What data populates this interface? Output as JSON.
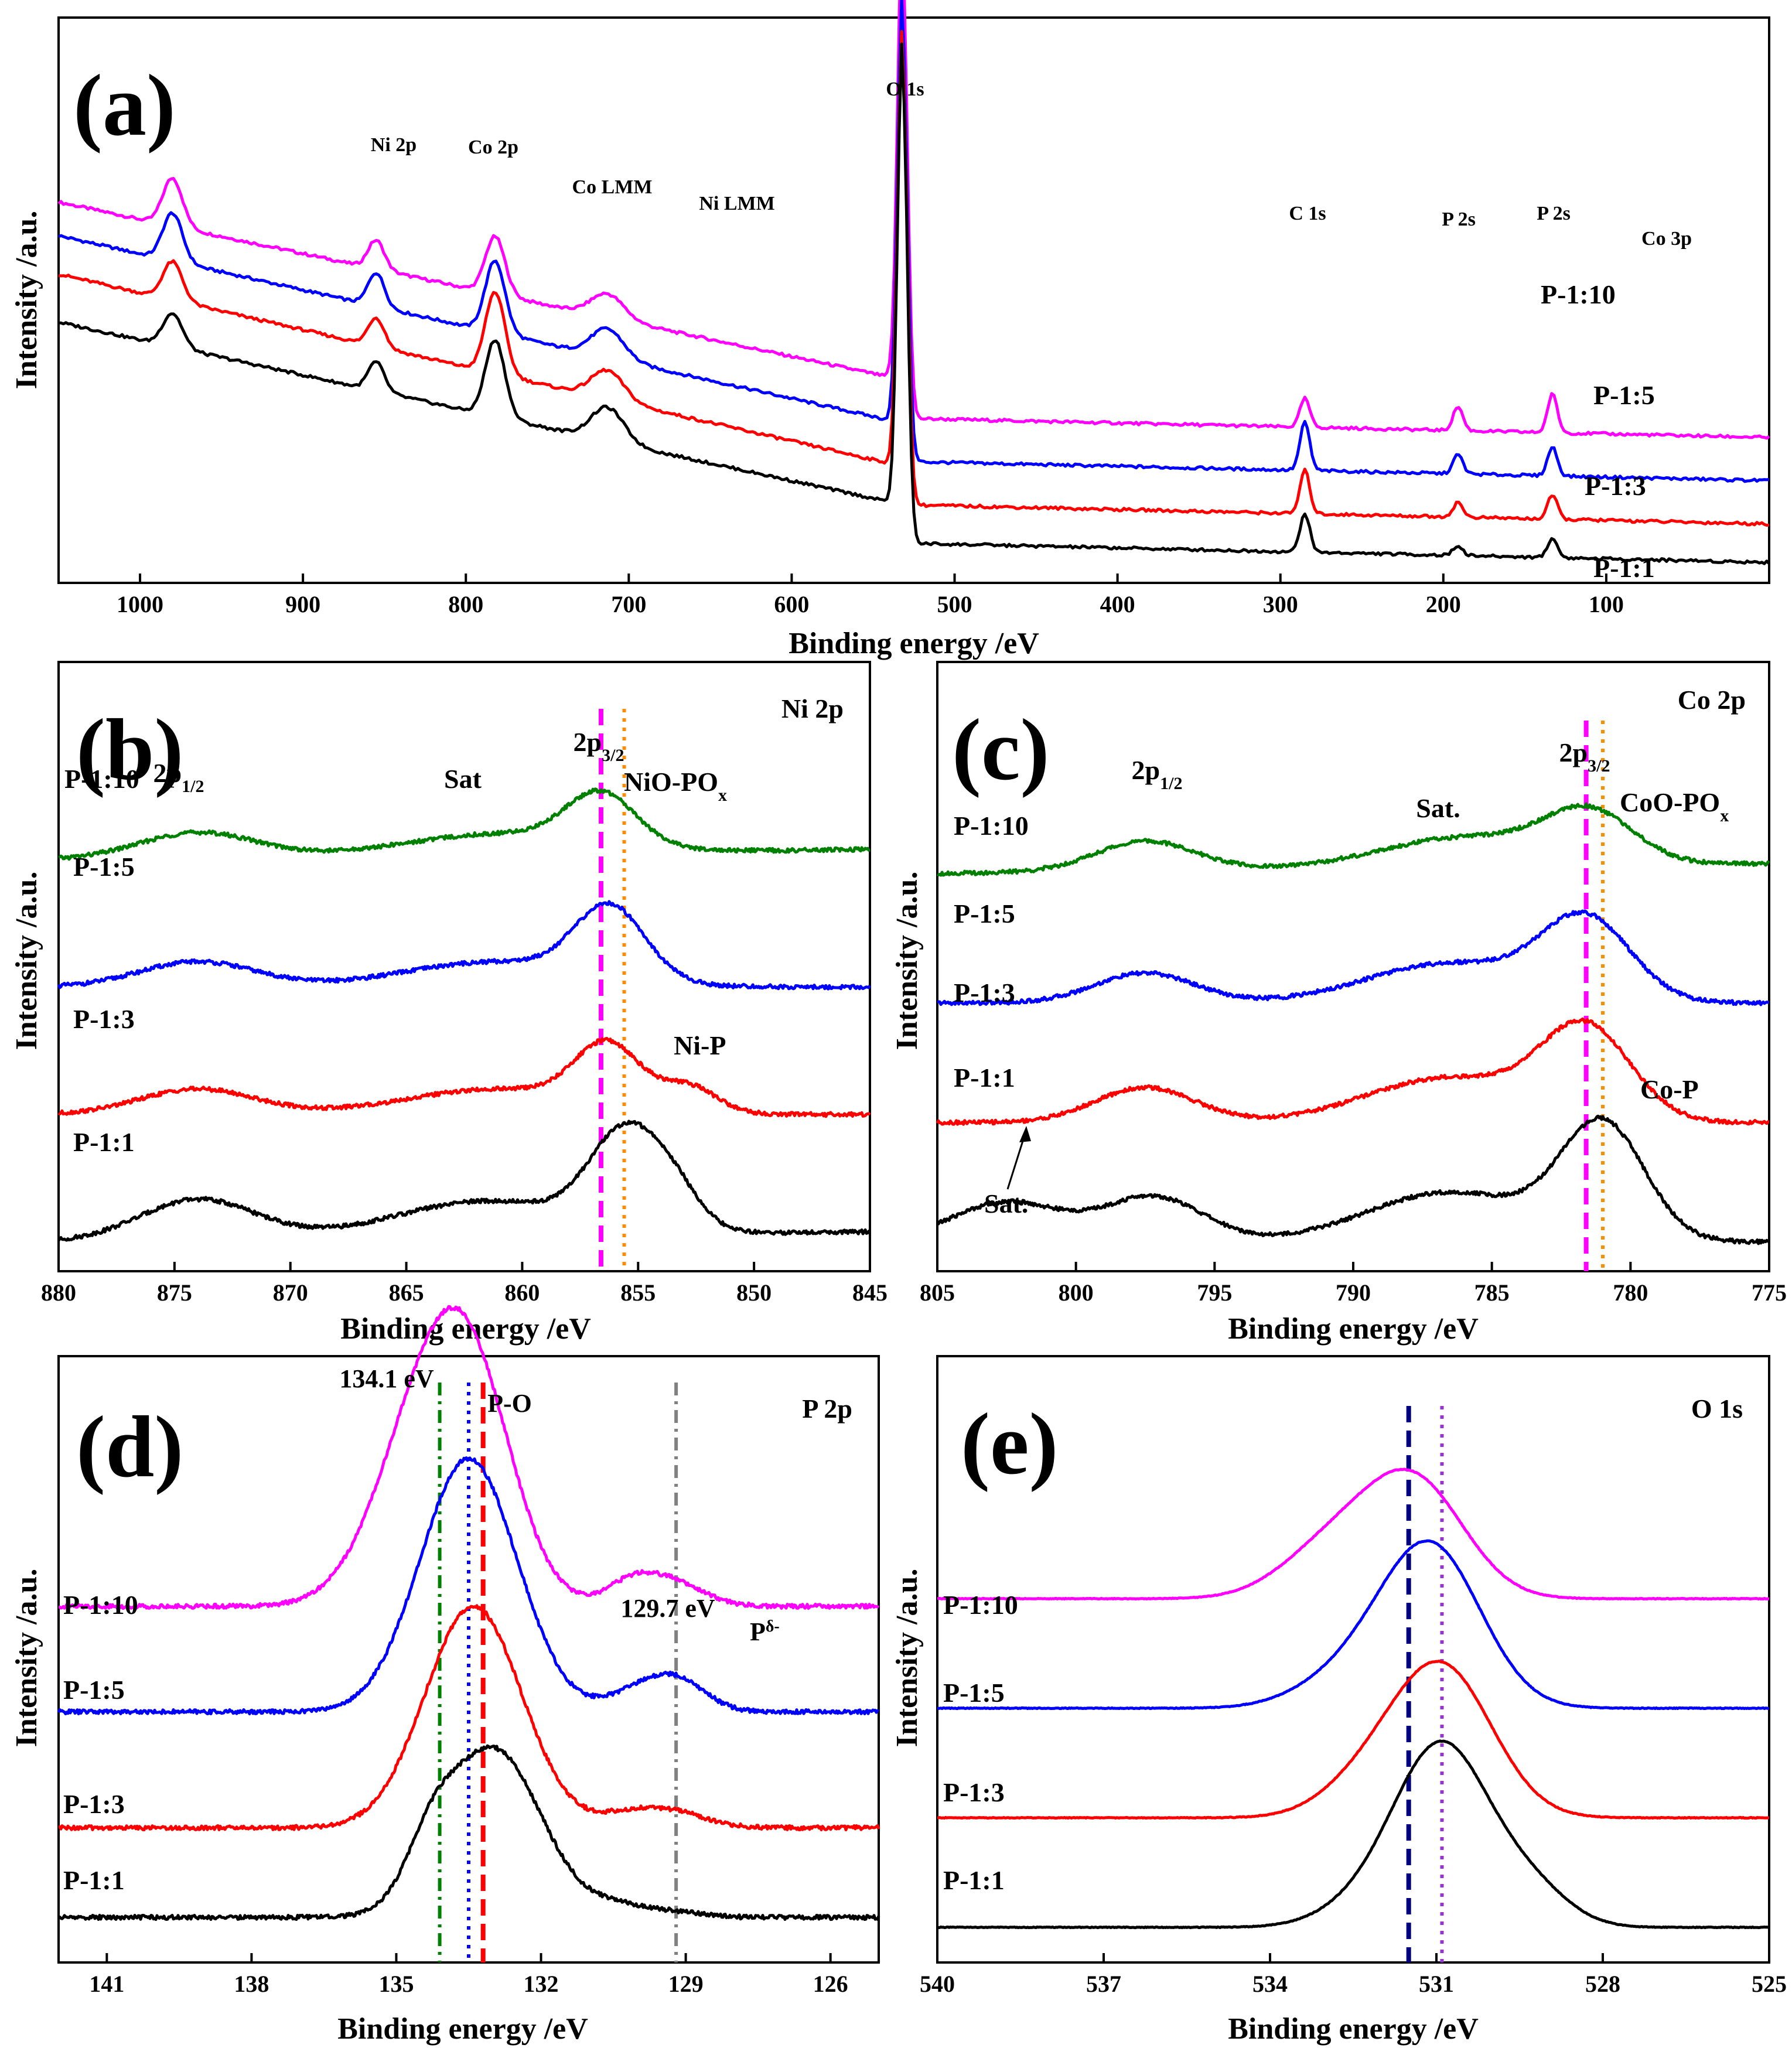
{
  "chart_data": [
    {
      "id": "a",
      "type": "line",
      "panel_label": "(a)",
      "title": "",
      "xlabel": "Binding energy /eV",
      "ylabel": "Intensity /a.u.",
      "xlim": [
        1050,
        0
      ],
      "x_reversed": true,
      "xticks": [
        1000,
        900,
        800,
        700,
        600,
        500,
        400,
        300,
        200,
        100
      ],
      "peak_labels": [
        "Ni 2p",
        "Co 2p",
        "Co LMM",
        "Ni LMM",
        "O 1s",
        "C 1s",
        "P 2s",
        "P 2s",
        "Co 3p"
      ],
      "series": [
        {
          "name": "P-1:10",
          "color": "#ff00ff",
          "baseline_left": 0.75,
          "baseline_right": 0.3,
          "peaks": [
            [
              980,
              0.1,
              6
            ],
            [
              855,
              0.06,
              5
            ],
            [
              782,
              0.12,
              6
            ],
            [
              713,
              0.05,
              10
            ],
            [
              532,
              0.95,
              3
            ],
            [
              285,
              0.06,
              3
            ],
            [
              191,
              0.05,
              3
            ],
            [
              133,
              0.08,
              3
            ]
          ]
        },
        {
          "name": "P-1:5",
          "color": "#0000ff",
          "baseline_left": 0.68,
          "baseline_right": 0.21,
          "peaks": [
            [
              980,
              0.1,
              6
            ],
            [
              855,
              0.07,
              5
            ],
            [
              782,
              0.15,
              6
            ],
            [
              713,
              0.06,
              10
            ],
            [
              532,
              0.9,
              3
            ],
            [
              285,
              0.1,
              3
            ],
            [
              191,
              0.04,
              3
            ],
            [
              133,
              0.06,
              3
            ]
          ]
        },
        {
          "name": "P-1:3",
          "color": "#ff0000",
          "baseline_left": 0.6,
          "baseline_right": 0.12,
          "peaks": [
            [
              980,
              0.08,
              6
            ],
            [
              855,
              0.06,
              5
            ],
            [
              782,
              0.17,
              6
            ],
            [
              713,
              0.06,
              10
            ],
            [
              532,
              0.92,
              3
            ],
            [
              285,
              0.09,
              3
            ],
            [
              191,
              0.03,
              3
            ],
            [
              133,
              0.05,
              3
            ]
          ]
        },
        {
          "name": "P-1:1",
          "color": "#000000",
          "baseline_left": 0.5,
          "baseline_right": 0.04,
          "peaks": [
            [
              980,
              0.07,
              6
            ],
            [
              855,
              0.06,
              5
            ],
            [
              782,
              0.16,
              6
            ],
            [
              713,
              0.07,
              10
            ],
            [
              532,
              0.97,
              3
            ],
            [
              285,
              0.08,
              3
            ],
            [
              191,
              0.02,
              3
            ],
            [
              133,
              0.04,
              3
            ]
          ]
        }
      ]
    },
    {
      "id": "b",
      "type": "line",
      "panel_label": "(b)",
      "core_level": "Ni 2p",
      "xlabel": "Binding energy /eV",
      "ylabel": "Intensity /a.u.",
      "xlim": [
        880,
        845
      ],
      "x_reversed": true,
      "xticks": [
        880,
        875,
        870,
        865,
        860,
        855,
        850,
        845
      ],
      "annotations": [
        "2p1/2",
        "Sat",
        "2p3/2",
        "NiO-POx",
        "Ni-P"
      ],
      "reference_lines": [
        {
          "x": 856.6,
          "color": "#ff00ff",
          "style": "dashed"
        },
        {
          "x": 855.6,
          "color": "#ff8c00",
          "style": "dotted"
        }
      ],
      "series": [
        {
          "name": "P-1:10",
          "color": "#008000",
          "offset": 0.75,
          "tail": 0.02,
          "peaks": [
            [
              874,
              0.05,
              2.5
            ],
            [
              861,
              0.04,
              4
            ],
            [
              856.6,
              0.1,
              1.5
            ]
          ]
        },
        {
          "name": "P-1:5",
          "color": "#0000ff",
          "offset": 0.5,
          "tail": 0.0,
          "peaks": [
            [
              874,
              0.05,
              2.5
            ],
            [
              861,
              0.05,
              4
            ],
            [
              856.2,
              0.14,
              1.5
            ]
          ]
        },
        {
          "name": "P-1:3",
          "color": "#ff0000",
          "offset": 0.25,
          "tail": 0.0,
          "peaks": [
            [
              874,
              0.05,
              2.5
            ],
            [
              861,
              0.05,
              4
            ],
            [
              856.3,
              0.12,
              1.4
            ],
            [
              852.8,
              0.05,
              1.2
            ]
          ]
        },
        {
          "name": "P-1:1",
          "color": "#000000",
          "offset": 0.0,
          "tail": 0.02,
          "peaks": [
            [
              874,
              0.08,
              2.5
            ],
            [
              861.5,
              0.07,
              4
            ],
            [
              855.6,
              0.18,
              1.5
            ],
            [
              853.5,
              0.07,
              1.2
            ]
          ]
        }
      ]
    },
    {
      "id": "c",
      "type": "line",
      "panel_label": "(c)",
      "core_level": "Co 2p",
      "xlabel": "Binding energy /eV",
      "ylabel": "Intensity /a.u.",
      "xlim": [
        805,
        775
      ],
      "x_reversed": true,
      "xticks": [
        805,
        800,
        795,
        790,
        785,
        780,
        775
      ],
      "annotations": [
        "2p1/2",
        "Sat.",
        "2p3/2",
        "CoO-POx",
        "Co-P",
        "Sat."
      ],
      "reference_lines": [
        {
          "x": 781.6,
          "color": "#ff00ff",
          "style": "dashed"
        },
        {
          "x": 781.0,
          "color": "#ff8c00",
          "style": "dotted"
        }
      ],
      "series": [
        {
          "name": "P-1:10",
          "color": "#008000",
          "offset": 0.74,
          "tail": 0.02,
          "peaks": [
            [
              797.5,
              0.06,
              1.8
            ],
            [
              786,
              0.06,
              3
            ],
            [
              781.5,
              0.1,
              1.6
            ]
          ]
        },
        {
          "name": "P-1:5",
          "color": "#0000ff",
          "offset": 0.48,
          "tail": 0.0,
          "peaks": [
            [
              797.5,
              0.06,
              1.8
            ],
            [
              786.5,
              0.08,
              3
            ],
            [
              781.6,
              0.16,
              1.6
            ]
          ]
        },
        {
          "name": "P-1:3",
          "color": "#ff0000",
          "offset": 0.24,
          "tail": 0.0,
          "peaks": [
            [
              797.5,
              0.07,
              1.8
            ],
            [
              786.5,
              0.09,
              3
            ],
            [
              781.6,
              0.18,
              1.6
            ]
          ]
        },
        {
          "name": "P-1:1",
          "color": "#000000",
          "offset": 0.0,
          "tail": 0.0,
          "peaks": [
            [
              802.5,
              0.08,
              2.0
            ],
            [
              797.2,
              0.09,
              1.8
            ],
            [
              786.5,
              0.1,
              3
            ],
            [
              781.0,
              0.23,
              1.5
            ]
          ]
        }
      ]
    },
    {
      "id": "d",
      "type": "line",
      "panel_label": "(d)",
      "core_level": "P 2p",
      "xlabel": "Binding energy /eV",
      "ylabel": "Intensity /a.u.",
      "xlim": [
        142,
        125
      ],
      "x_reversed": true,
      "xticks": [
        141,
        138,
        135,
        132,
        129,
        126
      ],
      "annotations": [
        "134.1 eV",
        "P-O",
        "129.7 eV",
        "Pδ-"
      ],
      "reference_lines": [
        {
          "x": 134.1,
          "color": "#008000",
          "style": "dashdot"
        },
        {
          "x": 133.5,
          "color": "#0000ff",
          "style": "dotted"
        },
        {
          "x": 133.2,
          "color": "#ff0000",
          "style": "dashed"
        },
        {
          "x": 129.2,
          "color": "#808080",
          "style": "dashdot"
        }
      ],
      "series": [
        {
          "name": "P-1:10",
          "color": "#ff00ff",
          "offset": 0.62,
          "tail": 0.0,
          "peaks": [
            [
              134.1,
              0.46,
              1.1
            ],
            [
              133.3,
              0.15,
              0.8
            ],
            [
              129.4,
              0.05,
              0.7
            ],
            [
              130.2,
              0.03,
              0.5
            ]
          ]
        },
        {
          "name": "P-1:5",
          "color": "#0000ff",
          "offset": 0.42,
          "tail": 0.0,
          "peaks": [
            [
              133.5,
              0.48,
              1.0
            ],
            [
              129.2,
              0.06,
              0.6
            ],
            [
              130.1,
              0.03,
              0.6
            ]
          ]
        },
        {
          "name": "P-1:3",
          "color": "#ff0000",
          "offset": 0.2,
          "tail": 0.0,
          "peaks": [
            [
              133.4,
              0.42,
              1.0
            ],
            [
              129.3,
              0.03,
              0.7
            ],
            [
              130.3,
              0.02,
              0.6
            ]
          ]
        },
        {
          "name": "P-1:1",
          "color": "#000000",
          "offset": 0.03,
          "tail": 0.0,
          "peaks": [
            [
              133.0,
              0.32,
              1.0
            ],
            [
              134.3,
              0.08,
              0.5
            ],
            [
              130.4,
              0.02,
              0.6
            ],
            [
              129.2,
              0.01,
              0.6
            ]
          ]
        }
      ]
    },
    {
      "id": "e",
      "type": "line",
      "panel_label": "(e)",
      "core_level": "O 1s",
      "xlabel": "Binding energy /eV",
      "ylabel": "Intensity /a.u.",
      "xlim": [
        540,
        525
      ],
      "x_reversed": true,
      "xticks": [
        540,
        537,
        534,
        531,
        528,
        525
      ],
      "annotations": [],
      "reference_lines": [
        {
          "x": 531.5,
          "color": "#000080",
          "style": "dashed"
        },
        {
          "x": 530.9,
          "color": "#9933cc",
          "style": "dotted"
        }
      ],
      "series": [
        {
          "name": "P-1:10",
          "color": "#ff00ff",
          "offset": 0.66,
          "tail": 0.0,
          "peaks": [
            [
              531.4,
              0.23,
              0.9
            ],
            [
              532.9,
              0.1,
              0.9
            ]
          ]
        },
        {
          "name": "P-1:5",
          "color": "#0000ff",
          "offset": 0.44,
          "tail": 0.0,
          "peaks": [
            [
              531.1,
              0.32,
              0.9
            ],
            [
              532.6,
              0.06,
              0.9
            ]
          ]
        },
        {
          "name": "P-1:3",
          "color": "#ff0000",
          "offset": 0.22,
          "tail": 0.0,
          "peaks": [
            [
              530.9,
              0.3,
              0.9
            ],
            [
              532.3,
              0.06,
              0.8
            ]
          ]
        },
        {
          "name": "P-1:1",
          "color": "#000000",
          "offset": 0.0,
          "tail": 0.0,
          "peaks": [
            [
              530.9,
              0.36,
              0.85
            ],
            [
              529.3,
              0.07,
              0.7
            ],
            [
              532.3,
              0.04,
              0.8
            ]
          ]
        }
      ]
    }
  ]
}
